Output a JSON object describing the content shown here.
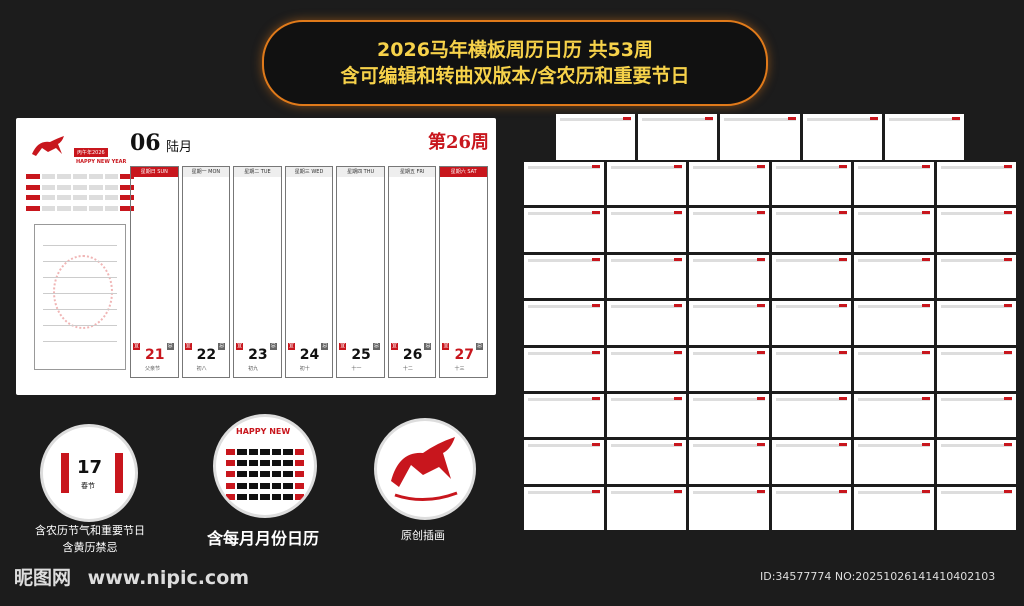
{
  "header": {
    "line1": "2026马年横板周历日历 共53周",
    "line2": "含可编辑和转曲双版本/含农历和重要节日"
  },
  "calendar": {
    "month": "06",
    "month_cn": "陆月",
    "week": "第26周",
    "year_tag": "丙午年2026",
    "greeting": "HAPPY NEW YEAR",
    "days": [
      {
        "header": "星期日 SUN",
        "num": "21",
        "lunar": "父亲节",
        "yi": "宜",
        "ji": "忌"
      },
      {
        "header": "星期一 MON",
        "num": "22",
        "lunar": "初八",
        "yi": "宜",
        "ji": "忌"
      },
      {
        "header": "星期二 TUE",
        "num": "23",
        "lunar": "初九",
        "yi": "宜",
        "ji": "忌"
      },
      {
        "header": "星期三 WED",
        "num": "24",
        "lunar": "初十",
        "yi": "宜",
        "ji": "忌"
      },
      {
        "header": "星期四 THU",
        "num": "25",
        "lunar": "十一",
        "yi": "宜",
        "ji": "忌"
      },
      {
        "header": "星期五 FRI",
        "num": "26",
        "lunar": "十二",
        "yi": "宜",
        "ji": "忌"
      },
      {
        "header": "星期六 SAT",
        "num": "27",
        "lunar": "十三",
        "yi": "宜",
        "ji": "忌"
      }
    ]
  },
  "features": {
    "c1_day": "17",
    "c1_festival": "春节",
    "c1_caption_1": "含农历节气和重要节日",
    "c1_caption_2": "含黄历禁忌",
    "c2_greeting": "HAPPY NEW",
    "c2_caption": "含每月月份日历",
    "c3_caption": "原创插画"
  },
  "watermark": {
    "brand": "昵图网",
    "url": "www.nipic.com",
    "id": "ID:34577774 NO:20251026141410402103"
  }
}
